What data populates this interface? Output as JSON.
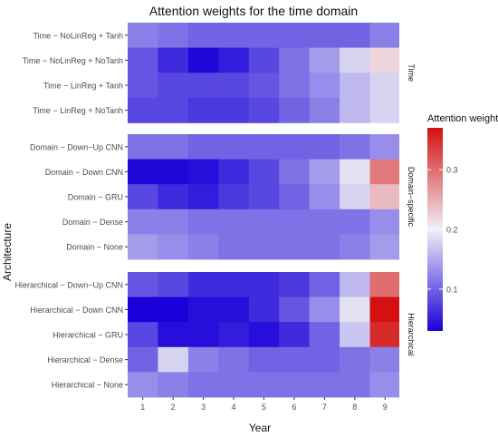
{
  "chart_data": {
    "type": "heatmap",
    "title": "Attention weights for the time domain",
    "xlabel": "Year",
    "ylabel": "Architecture",
    "x": [
      "1",
      "2",
      "3",
      "4",
      "5",
      "6",
      "7",
      "8",
      "9"
    ],
    "color_scale": {
      "title": "Attention weight",
      "low_color": "#1a00d8",
      "mid_color": "#f0f0f6",
      "high_color": "#d41010",
      "low": 0.03,
      "mid": 0.2,
      "high": 0.37,
      "ticks": [
        "0.1",
        "0.2",
        "0.3"
      ]
    },
    "panels": [
      {
        "label": "Time",
        "rows": [
          {
            "name": "Time − NoLinReg + Tanh",
            "values": [
              0.12,
              0.11,
              0.1,
              0.1,
              0.1,
              0.1,
              0.1,
              0.1,
              0.12
            ]
          },
          {
            "name": "Time − NoLinReg + NoTanh",
            "values": [
              0.09,
              0.06,
              0.035,
              0.05,
              0.08,
              0.11,
              0.14,
              0.18,
              0.22
            ]
          },
          {
            "name": "Time − LinReg + Tanh",
            "values": [
              0.09,
              0.08,
              0.08,
              0.08,
              0.09,
              0.11,
              0.13,
              0.16,
              0.18
            ]
          },
          {
            "name": "Time − LinReg + NoTanh",
            "values": [
              0.08,
              0.08,
              0.07,
              0.07,
              0.08,
              0.1,
              0.12,
              0.16,
              0.18
            ]
          }
        ]
      },
      {
        "label": "Domain−specific",
        "rows": [
          {
            "name": "Domain − Down−Up CNN",
            "values": [
              0.11,
              0.11,
              0.1,
              0.1,
              0.1,
              0.1,
              0.1,
              0.11,
              0.13
            ]
          },
          {
            "name": "Domain − Down CNN",
            "values": [
              0.035,
              0.035,
              0.04,
              0.06,
              0.08,
              0.11,
              0.14,
              0.19,
              0.29
            ]
          },
          {
            "name": "Domain − GRU",
            "values": [
              0.08,
              0.06,
              0.05,
              0.07,
              0.08,
              0.1,
              0.13,
              0.18,
              0.24
            ]
          },
          {
            "name": "Domain − Dense",
            "values": [
              0.12,
              0.12,
              0.11,
              0.11,
              0.11,
              0.11,
              0.11,
              0.11,
              0.13
            ]
          },
          {
            "name": "Domain − None",
            "values": [
              0.14,
              0.13,
              0.12,
              0.11,
              0.11,
              0.11,
              0.11,
              0.12,
              0.14
            ]
          }
        ]
      },
      {
        "label": "Hierarchical",
        "rows": [
          {
            "name": "Hierarchical − Down−Up CNN",
            "values": [
              0.09,
              0.08,
              0.06,
              0.06,
              0.06,
              0.07,
              0.1,
              0.16,
              0.3
            ]
          },
          {
            "name": "Hierarchical − Down CNN",
            "values": [
              0.025,
              0.03,
              0.04,
              0.04,
              0.06,
              0.09,
              0.13,
              0.19,
              0.37
            ]
          },
          {
            "name": "Hierarchical − GRU",
            "values": [
              0.08,
              0.04,
              0.04,
              0.05,
              0.04,
              0.06,
              0.1,
              0.17,
              0.35
            ]
          },
          {
            "name": "Hierarchical − Dense",
            "values": [
              0.1,
              0.18,
              0.12,
              0.11,
              0.1,
              0.1,
              0.1,
              0.11,
              0.12
            ]
          },
          {
            "name": "Hierarchical − None",
            "values": [
              0.13,
              0.12,
              0.11,
              0.11,
              0.11,
              0.11,
              0.11,
              0.11,
              0.13
            ]
          }
        ]
      }
    ],
    "grid": false,
    "legend_position": "right"
  }
}
